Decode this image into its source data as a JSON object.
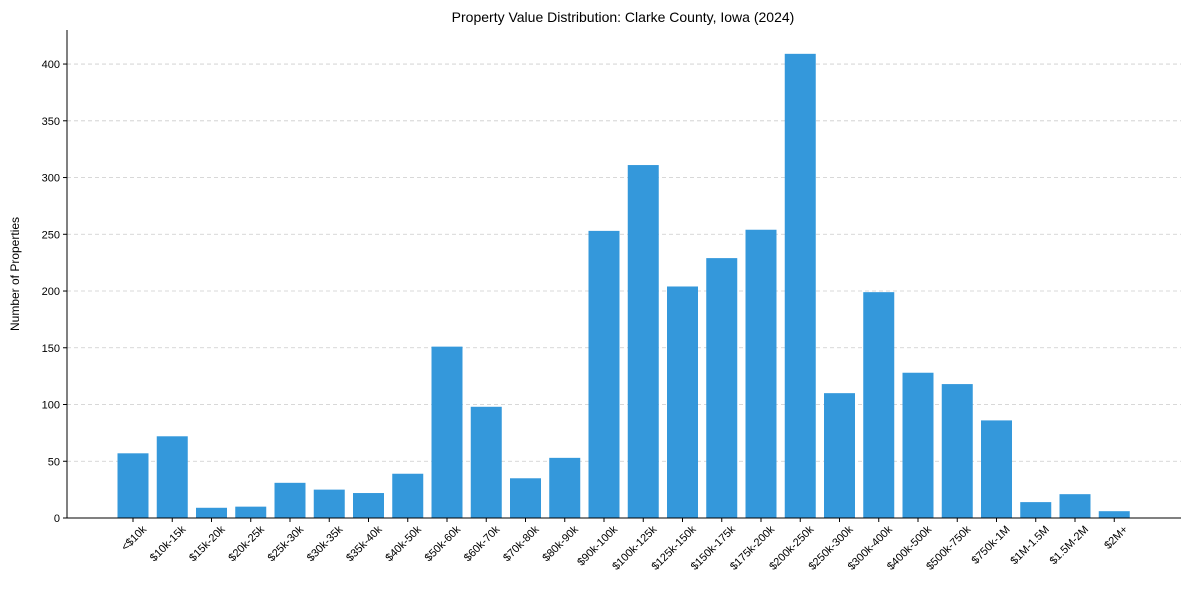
{
  "chart_data": {
    "type": "bar",
    "title": "Property Value Distribution: Clarke County, Iowa (2024)",
    "xlabel": "",
    "ylabel": "Number of Properties",
    "categories": [
      "<$10k",
      "$10k-15k",
      "$15k-20k",
      "$20k-25k",
      "$25k-30k",
      "$30k-35k",
      "$35k-40k",
      "$40k-50k",
      "$50k-60k",
      "$60k-70k",
      "$70k-80k",
      "$80k-90k",
      "$90k-100k",
      "$100k-125k",
      "$125k-150k",
      "$150k-175k",
      "$175k-200k",
      "$200k-250k",
      "$250k-300k",
      "$300k-400k",
      "$400k-500k",
      "$500k-750k",
      "$750k-1M",
      "$1M-1.5M",
      "$1.5M-2M",
      "$2M+"
    ],
    "values": [
      57,
      72,
      9,
      10,
      31,
      25,
      22,
      39,
      151,
      98,
      35,
      53,
      253,
      311,
      204,
      229,
      254,
      409,
      110,
      199,
      128,
      118,
      86,
      14,
      21,
      6
    ],
    "ylim": [
      0,
      430
    ],
    "yticks": [
      0,
      50,
      100,
      150,
      200,
      250,
      300,
      350,
      400
    ],
    "grid": "y-dashed",
    "bar_color": "#3498db",
    "grid_color": "#cccccc",
    "axis_color": "#000000"
  }
}
